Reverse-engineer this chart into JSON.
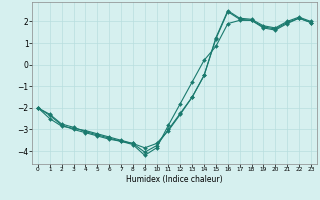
{
  "xlabel": "Humidex (Indice chaleur)",
  "bg_color": "#d6f0ef",
  "grid_color": "#b8dede",
  "line_color": "#1a7a6e",
  "line_width": 0.8,
  "marker": "D",
  "markersize": 2.0,
  "xlim": [
    -0.5,
    23.5
  ],
  "ylim": [
    -4.6,
    2.9
  ],
  "xticks": [
    0,
    1,
    2,
    3,
    4,
    5,
    6,
    7,
    8,
    9,
    10,
    11,
    12,
    13,
    14,
    15,
    16,
    17,
    18,
    19,
    20,
    21,
    22,
    23
  ],
  "yticks": [
    -4,
    -3,
    -2,
    -1,
    0,
    1,
    2
  ],
  "line1_x": [
    0,
    1,
    2,
    3,
    4,
    5,
    6,
    7,
    8,
    9,
    10,
    11,
    12,
    13,
    14,
    15,
    16,
    17,
    18,
    19,
    20,
    21,
    22,
    23
  ],
  "line1_y": [
    -2.0,
    -2.5,
    -2.85,
    -2.95,
    -3.05,
    -3.2,
    -3.35,
    -3.5,
    -3.65,
    -3.85,
    -3.65,
    -3.05,
    -2.3,
    -1.5,
    -0.5,
    1.25,
    2.5,
    2.15,
    2.1,
    1.8,
    1.7,
    2.0,
    2.2,
    2.0
  ],
  "line2_x": [
    0,
    1,
    2,
    3,
    4,
    5,
    6,
    7,
    8,
    9,
    10,
    11,
    12,
    13,
    14,
    15,
    16,
    17,
    18,
    19,
    20,
    21,
    22,
    23
  ],
  "line2_y": [
    -2.0,
    -2.35,
    -2.8,
    -3.0,
    -3.15,
    -3.3,
    -3.45,
    -3.55,
    -3.65,
    -4.05,
    -3.75,
    -3.0,
    -2.25,
    -1.5,
    -0.5,
    1.2,
    2.45,
    2.1,
    2.05,
    1.75,
    1.65,
    1.95,
    2.15,
    1.95
  ],
  "line3_x": [
    0,
    1,
    2,
    3,
    4,
    5,
    6,
    7,
    8,
    9,
    10,
    11,
    12,
    13,
    14,
    15,
    16,
    17,
    18,
    19,
    20,
    21,
    22,
    23
  ],
  "line3_y": [
    -2.0,
    -2.3,
    -2.75,
    -2.9,
    -3.1,
    -3.25,
    -3.4,
    -3.55,
    -3.7,
    -4.2,
    -3.85,
    -2.8,
    -1.8,
    -0.8,
    0.2,
    0.85,
    1.9,
    2.05,
    2.05,
    1.7,
    1.6,
    1.9,
    2.15,
    1.95
  ]
}
